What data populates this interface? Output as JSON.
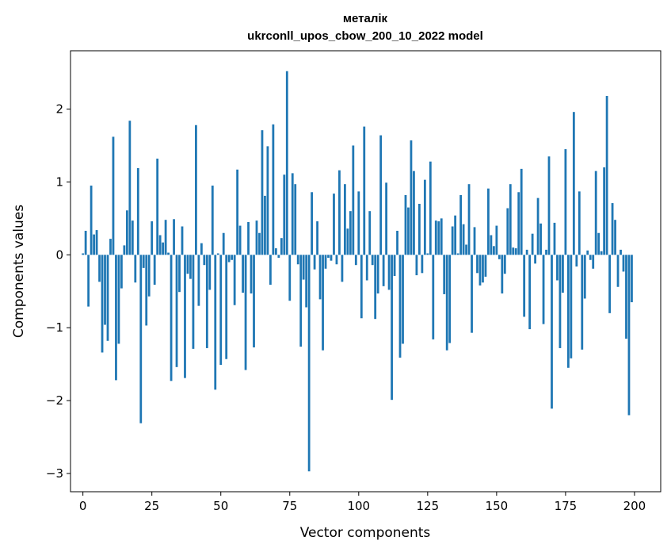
{
  "chart_data": {
    "type": "bar",
    "title": "металік",
    "subtitle": "ukrconll_upos_cbow_200_10_2022 model",
    "xlabel": "Vector components",
    "ylabel": "Components values",
    "xlim": [
      -4.5,
      209.5
    ],
    "ylim": [
      -3.25,
      2.8
    ],
    "xticks": [
      0,
      25,
      50,
      75,
      100,
      125,
      150,
      175,
      200
    ],
    "yticks": [
      -3,
      -2,
      -1,
      0,
      1,
      2
    ],
    "ytick_labels": [
      "−3",
      "−2",
      "−1",
      "0",
      "1",
      "2"
    ],
    "grid": false,
    "color": "#1f77b4",
    "x": [
      0,
      1,
      2,
      3,
      4,
      5,
      6,
      7,
      8,
      9,
      10,
      11,
      12,
      13,
      14,
      15,
      16,
      17,
      18,
      19,
      20,
      21,
      22,
      23,
      24,
      25,
      26,
      27,
      28,
      29,
      30,
      31,
      32,
      33,
      34,
      35,
      36,
      37,
      38,
      39,
      40,
      41,
      42,
      43,
      44,
      45,
      46,
      47,
      48,
      49,
      50,
      51,
      52,
      53,
      54,
      55,
      56,
      57,
      58,
      59,
      60,
      61,
      62,
      63,
      64,
      65,
      66,
      67,
      68,
      69,
      70,
      71,
      72,
      73,
      74,
      75,
      76,
      77,
      78,
      79,
      80,
      81,
      82,
      83,
      84,
      85,
      86,
      87,
      88,
      89,
      90,
      91,
      92,
      93,
      94,
      95,
      96,
      97,
      98,
      99,
      100,
      101,
      102,
      103,
      104,
      105,
      106,
      107,
      108,
      109,
      110,
      111,
      112,
      113,
      114,
      115,
      116,
      117,
      118,
      119,
      120,
      121,
      122,
      123,
      124,
      125,
      126,
      127,
      128,
      129,
      130,
      131,
      132,
      133,
      134,
      135,
      136,
      137,
      138,
      139,
      140,
      141,
      142,
      143,
      144,
      145,
      146,
      147,
      148,
      149,
      150,
      151,
      152,
      153,
      154,
      155,
      156,
      157,
      158,
      159,
      160,
      161,
      162,
      163,
      164,
      165,
      166,
      167,
      168,
      169,
      170,
      171,
      172,
      173,
      174,
      175,
      176,
      177,
      178,
      179,
      180,
      181,
      182,
      183,
      184,
      185,
      186,
      187,
      188,
      189,
      190,
      191,
      192,
      193,
      194,
      195,
      196,
      197,
      198,
      199
    ],
    "values": [
      0.02,
      0.33,
      -0.71,
      0.95,
      0.28,
      0.34,
      -0.37,
      -1.34,
      -0.96,
      -1.18,
      0.22,
      1.62,
      -1.72,
      -1.22,
      -0.46,
      0.13,
      0.61,
      1.84,
      0.47,
      -0.38,
      1.19,
      -2.31,
      -0.18,
      -0.97,
      -0.57,
      0.46,
      -0.41,
      1.32,
      0.27,
      0.17,
      0.48,
      0.03,
      -1.73,
      0.49,
      -1.54,
      -0.51,
      0.39,
      -1.69,
      -0.26,
      -0.33,
      -1.29,
      1.78,
      -0.7,
      0.16,
      -0.14,
      -1.28,
      -0.48,
      0.95,
      -1.85,
      0.02,
      -1.51,
      0.3,
      -1.43,
      -0.1,
      -0.07,
      -0.69,
      1.17,
      0.4,
      -0.52,
      -1.58,
      0.45,
      -0.53,
      -1.27,
      0.47,
      0.3,
      1.71,
      0.81,
      1.49,
      -0.41,
      1.79,
      0.09,
      -0.04,
      0.23,
      1.1,
      2.52,
      -0.63,
      1.12,
      0.97,
      -0.13,
      -1.26,
      -0.34,
      -0.72,
      -2.97,
      0.86,
      -0.2,
      0.46,
      -0.61,
      -1.31,
      -0.19,
      -0.04,
      -0.08,
      0.84,
      -0.13,
      1.16,
      -0.37,
      0.97,
      0.36,
      0.6,
      1.5,
      -0.14,
      0.87,
      -0.87,
      1.76,
      -0.35,
      0.6,
      -0.14,
      -0.88,
      -0.53,
      1.64,
      -0.43,
      0.99,
      -0.48,
      -1.99,
      -0.29,
      0.33,
      -1.41,
      -1.22,
      0.82,
      0.65,
      1.57,
      1.15,
      -0.28,
      0.7,
      -0.25,
      1.03,
      0.02,
      1.28,
      -1.16,
      0.47,
      0.46,
      0.5,
      -0.54,
      -1.31,
      -1.21,
      0.39,
      0.54,
      0.02,
      0.82,
      0.42,
      0.14,
      0.97,
      -1.07,
      0.38,
      -0.25,
      -0.42,
      -0.38,
      -0.3,
      0.91,
      0.27,
      0.12,
      0.4,
      -0.06,
      -0.53,
      -0.26,
      0.64,
      0.97,
      0.1,
      0.09,
      0.86,
      1.18,
      -0.85,
      0.07,
      -1.02,
      0.29,
      -0.12,
      0.78,
      0.43,
      -0.95,
      0.07,
      1.35,
      -2.11,
      0.44,
      -0.35,
      -1.28,
      -0.52,
      1.45,
      -1.55,
      -1.42,
      1.96,
      -0.16,
      0.87,
      -1.3,
      -0.6,
      0.06,
      -0.07,
      -0.19,
      1.15,
      0.3,
      0.05,
      1.2,
      2.18,
      -0.8,
      0.71,
      0.48,
      -0.44,
      0.07,
      -0.23,
      -1.15,
      -2.2,
      -0.65
    ]
  }
}
